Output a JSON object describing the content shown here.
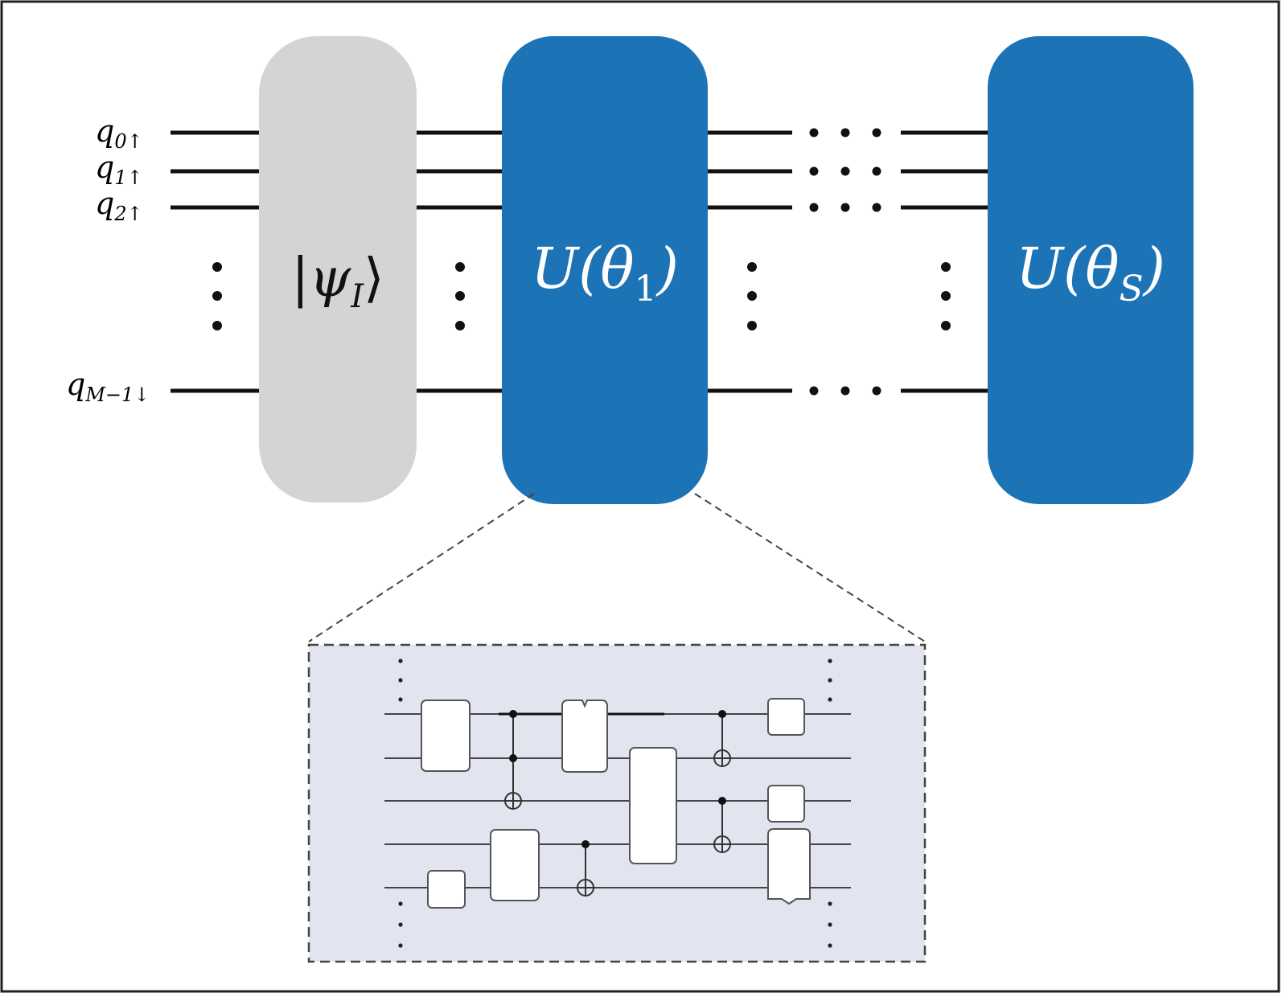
{
  "qubit_labels": [
    {
      "base": "q",
      "sub": "0↑"
    },
    {
      "base": "q",
      "sub": "1↑"
    },
    {
      "base": "q",
      "sub": "2↑"
    },
    {
      "base": "q",
      "sub": "M−1↓"
    }
  ],
  "blocks": {
    "initial_state": {
      "pre": "|",
      "symbol": "ψ",
      "sub": "I",
      "post": "⟩",
      "fill": "#d4d4d6"
    },
    "unitary_1": {
      "pre": "U(",
      "symbol": "θ",
      "sub": "1",
      "post": ")",
      "fill": "#1c73b6"
    },
    "unitary_s": {
      "pre": "U(",
      "symbol": "θ",
      "sub": "S",
      "post": ")",
      "fill": "#1c73b6"
    }
  },
  "colors": {
    "wire": "#111111",
    "inset_fill": "#e2e4ef",
    "inset_border": "#444444",
    "block_text_light": "#ffffff",
    "block_text_dark": "#111111"
  }
}
